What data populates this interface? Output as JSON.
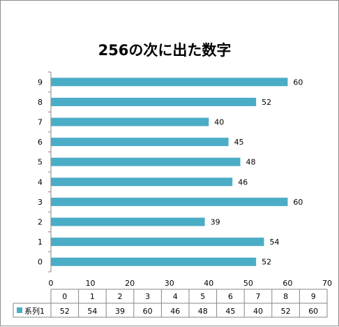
{
  "chart_data": {
    "type": "bar",
    "orientation": "horizontal",
    "title": "256の次に出た数字",
    "categories": [
      "0",
      "1",
      "2",
      "3",
      "4",
      "5",
      "6",
      "7",
      "8",
      "9"
    ],
    "series": [
      {
        "name": "系列1",
        "values": [
          52,
          54,
          39,
          60,
          46,
          48,
          45,
          40,
          52,
          60
        ],
        "color": "#4bacc6"
      }
    ],
    "x_axis": {
      "min": 0,
      "max": 70,
      "ticks": [
        0,
        10,
        20,
        30,
        40,
        50,
        60,
        70
      ]
    },
    "grid": false,
    "data_labels": true,
    "data_table": true,
    "legend_key_in_table": true
  }
}
